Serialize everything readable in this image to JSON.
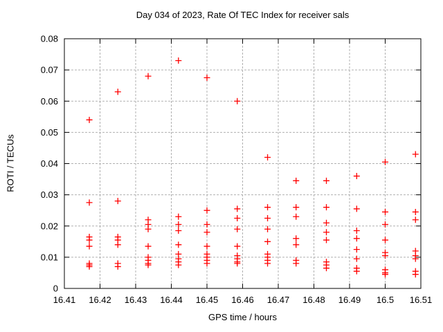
{
  "chart_data": {
    "type": "scatter",
    "title": "Day 034 of 2023, Rate Of TEC Index for receiver sals",
    "xlabel": "GPS time / hours",
    "ylabel": "ROTI / TECUs",
    "xlim": [
      16.41,
      16.51
    ],
    "ylim": [
      0,
      0.08
    ],
    "xticks": {
      "values": [
        16.41,
        16.42,
        16.43,
        16.44,
        16.45,
        16.46,
        16.47,
        16.48,
        16.49,
        16.5,
        16.51
      ],
      "labels": [
        "16.41",
        "16.42",
        "16.43",
        "16.44",
        "16.45",
        "16.46",
        "16.47",
        "16.48",
        "16.49",
        "16.5",
        "16.51"
      ]
    },
    "yticks": {
      "values": [
        0,
        0.01,
        0.02,
        0.03,
        0.04,
        0.05,
        0.06,
        0.07,
        0.08
      ],
      "labels": [
        "0",
        "0.01",
        "0.02",
        "0.03",
        "0.04",
        "0.05",
        "0.06",
        "0.07",
        "0.08"
      ]
    },
    "grid": true,
    "legend": "none",
    "marker": {
      "shape": "plus",
      "color": "#ff0000",
      "size": 9
    },
    "colors": {
      "points": "#ff0000",
      "grid": "#b0b0b0",
      "axis": "#000000",
      "background": "#ffffff"
    },
    "series": [
      {
        "name": "ROTI",
        "points": [
          [
            16.417,
            0.054
          ],
          [
            16.417,
            0.0275
          ],
          [
            16.417,
            0.0165
          ],
          [
            16.417,
            0.0155
          ],
          [
            16.417,
            0.0135
          ],
          [
            16.417,
            0.008
          ],
          [
            16.417,
            0.0075
          ],
          [
            16.417,
            0.007
          ],
          [
            16.425,
            0.063
          ],
          [
            16.425,
            0.028
          ],
          [
            16.425,
            0.0165
          ],
          [
            16.425,
            0.0155
          ],
          [
            16.425,
            0.014
          ],
          [
            16.425,
            0.008
          ],
          [
            16.425,
            0.007
          ],
          [
            16.4335,
            0.068
          ],
          [
            16.4335,
            0.022
          ],
          [
            16.4335,
            0.0205
          ],
          [
            16.4335,
            0.019
          ],
          [
            16.4335,
            0.0135
          ],
          [
            16.4335,
            0.01
          ],
          [
            16.4335,
            0.009
          ],
          [
            16.4335,
            0.008
          ],
          [
            16.4335,
            0.0075
          ],
          [
            16.442,
            0.073
          ],
          [
            16.442,
            0.023
          ],
          [
            16.442,
            0.0205
          ],
          [
            16.442,
            0.0185
          ],
          [
            16.442,
            0.014
          ],
          [
            16.442,
            0.011
          ],
          [
            16.442,
            0.0095
          ],
          [
            16.442,
            0.0085
          ],
          [
            16.442,
            0.0075
          ],
          [
            16.45,
            0.0675
          ],
          [
            16.45,
            0.025
          ],
          [
            16.45,
            0.0205
          ],
          [
            16.45,
            0.018
          ],
          [
            16.45,
            0.0135
          ],
          [
            16.45,
            0.011
          ],
          [
            16.45,
            0.01
          ],
          [
            16.45,
            0.009
          ],
          [
            16.45,
            0.008
          ],
          [
            16.4585,
            0.06
          ],
          [
            16.4585,
            0.0255
          ],
          [
            16.4585,
            0.0225
          ],
          [
            16.4585,
            0.019
          ],
          [
            16.4585,
            0.0135
          ],
          [
            16.4585,
            0.0105
          ],
          [
            16.4585,
            0.0095
          ],
          [
            16.4585,
            0.0085
          ],
          [
            16.4585,
            0.008
          ],
          [
            16.467,
            0.042
          ],
          [
            16.467,
            0.026
          ],
          [
            16.467,
            0.0225
          ],
          [
            16.467,
            0.019
          ],
          [
            16.467,
            0.015
          ],
          [
            16.467,
            0.011
          ],
          [
            16.467,
            0.01
          ],
          [
            16.467,
            0.009
          ],
          [
            16.467,
            0.008
          ],
          [
            16.475,
            0.0345
          ],
          [
            16.475,
            0.026
          ],
          [
            16.475,
            0.023
          ],
          [
            16.475,
            0.016
          ],
          [
            16.475,
            0.014
          ],
          [
            16.475,
            0.009
          ],
          [
            16.475,
            0.008
          ],
          [
            16.4835,
            0.0345
          ],
          [
            16.4835,
            0.026
          ],
          [
            16.4835,
            0.021
          ],
          [
            16.4835,
            0.018
          ],
          [
            16.4835,
            0.0155
          ],
          [
            16.4835,
            0.0085
          ],
          [
            16.4835,
            0.0075
          ],
          [
            16.4835,
            0.0065
          ],
          [
            16.492,
            0.036
          ],
          [
            16.492,
            0.0255
          ],
          [
            16.492,
            0.0185
          ],
          [
            16.492,
            0.016
          ],
          [
            16.492,
            0.0125
          ],
          [
            16.492,
            0.0095
          ],
          [
            16.492,
            0.0065
          ],
          [
            16.492,
            0.0055
          ],
          [
            16.5,
            0.0405
          ],
          [
            16.5,
            0.0245
          ],
          [
            16.5,
            0.0205
          ],
          [
            16.5,
            0.0155
          ],
          [
            16.5,
            0.0115
          ],
          [
            16.5,
            0.0105
          ],
          [
            16.5,
            0.006
          ],
          [
            16.5,
            0.005
          ],
          [
            16.5,
            0.0045
          ],
          [
            16.5085,
            0.043
          ],
          [
            16.5085,
            0.0245
          ],
          [
            16.5085,
            0.022
          ],
          [
            16.5085,
            0.012
          ],
          [
            16.5085,
            0.0105
          ],
          [
            16.5085,
            0.0095
          ],
          [
            16.5085,
            0.0055
          ],
          [
            16.5085,
            0.0045
          ]
        ]
      }
    ]
  }
}
